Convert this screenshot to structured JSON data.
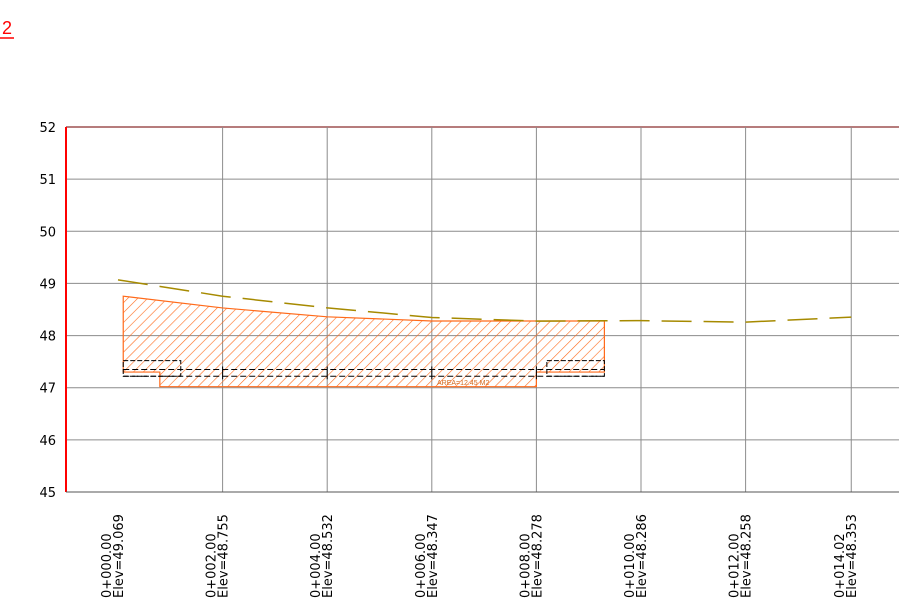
{
  "corner_mark": "2",
  "area_label": "AREA=12.45 M2",
  "colors": {
    "grid": "#8c8c8c",
    "axis": "#ff0000",
    "frame_top": "#9e5050",
    "ground": "#a68a00",
    "hatch": "#ff6a1a",
    "pavement": "#000000",
    "corner_mark": "#ff0000"
  },
  "chart_data": {
    "type": "line",
    "ylim": [
      45,
      52
    ],
    "xlim": [
      -0.7,
      14.3
    ],
    "y_ticks": [
      "45",
      "46",
      "47",
      "48",
      "49",
      "50",
      "51",
      "52"
    ],
    "grid": true,
    "x_ticks": [
      {
        "x": 0,
        "station": "0+000.00",
        "elev": "Elev=49.069"
      },
      {
        "x": 2.0,
        "station": "0+002.00",
        "elev": "Elev=48.755"
      },
      {
        "x": 4.0,
        "station": "0+004.00",
        "elev": "Elev=48.532"
      },
      {
        "x": 6.0,
        "station": "0+006.00",
        "elev": "Elev=48.347"
      },
      {
        "x": 8.0,
        "station": "0+008.00",
        "elev": "Elev=48.278"
      },
      {
        "x": 10.0,
        "station": "0+010.00",
        "elev": "Elev=48.286"
      },
      {
        "x": 12.0,
        "station": "0+012.00",
        "elev": "Elev=48.258"
      },
      {
        "x": 14.02,
        "station": "0+014.02",
        "elev": "Elev=48.353"
      }
    ],
    "series": [
      {
        "kind": "existing-ground",
        "x": [
          0,
          2.0,
          4.0,
          6.0,
          8.0,
          10.0,
          12.0,
          14.02
        ],
        "y": [
          49.069,
          48.755,
          48.532,
          48.347,
          48.278,
          48.286,
          48.258,
          48.353
        ]
      }
    ],
    "cut_area": {
      "x": [
        0.1,
        2.0,
        4.0,
        6.0,
        8.0,
        8.0,
        9.3,
        9.3,
        8.0,
        8.0,
        6.0,
        4.0,
        0.8,
        0.8,
        0.1
      ],
      "y": [
        48.755,
        48.53,
        48.36,
        48.28,
        48.28,
        48.28,
        48.28,
        47.3,
        47.3,
        47.02,
        47.02,
        47.02,
        47.02,
        47.3,
        47.3
      ]
    },
    "pavement": {
      "top_y": 47.35,
      "mid_y": 47.22,
      "left_x": 0.1,
      "right_x": 9.3,
      "curb_left": [
        0.1,
        1.2
      ],
      "curb_right": [
        8.2,
        9.3
      ],
      "curb_top_y": 47.52
    },
    "area_value": "12.45 M2"
  }
}
